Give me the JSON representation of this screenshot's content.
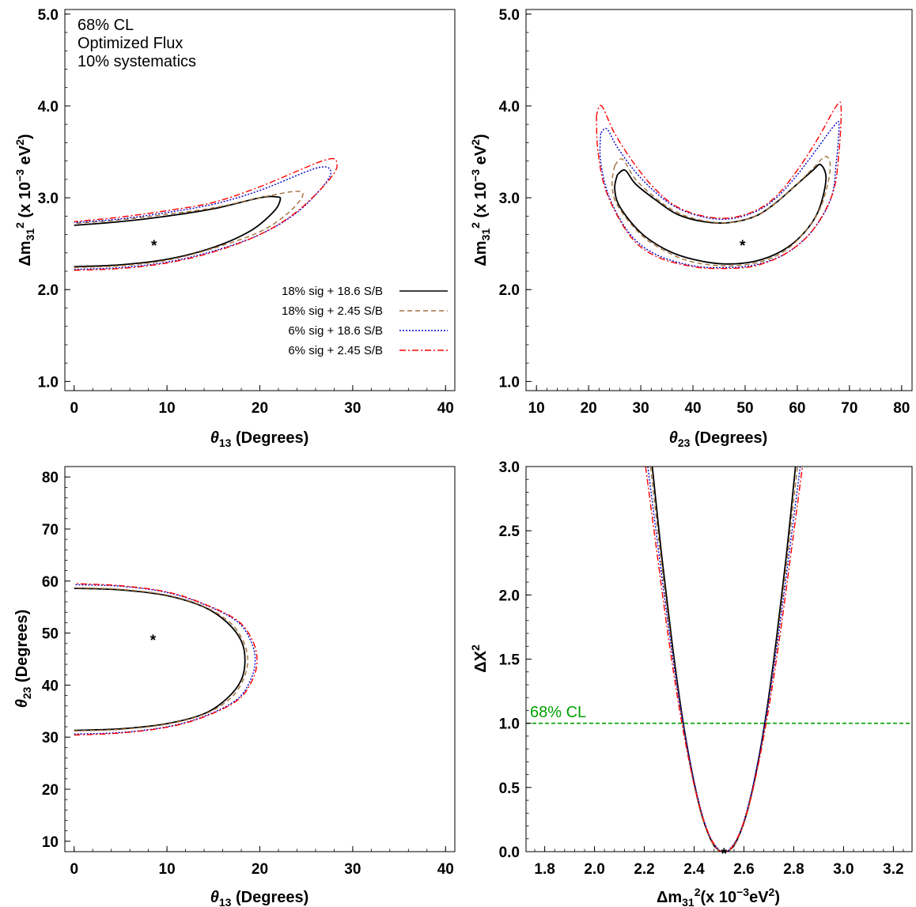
{
  "chart_data": [
    {
      "id": "p1",
      "type": "line",
      "xlim": [
        -1,
        41
      ],
      "ylim": [
        0.9,
        5.05
      ],
      "xticks": [
        0,
        10,
        20,
        30,
        40
      ],
      "xtick_labels": [
        "0",
        "10",
        "20",
        "30",
        "40"
      ],
      "yticks": [
        1.0,
        2.0,
        3.0,
        4.0,
        5.0
      ],
      "ytick_labels": [
        "1.0",
        "2.0",
        "3.0",
        "4.0",
        "5.0"
      ],
      "xlabel": "θ13 (Degrees)",
      "ylabel": "Δm31 2 (x 10−3 eV2)",
      "grid": false,
      "annotations": [
        {
          "text": "68% CL",
          "color": "#ff8c00"
        },
        {
          "text": "Optimized Flux",
          "color": "#a0703c"
        },
        {
          "text": "10% systematics",
          "color": "#8b008b"
        }
      ],
      "best_fit": {
        "x": 8.6,
        "y": 2.5
      },
      "legend": {
        "placement": "bottom-right",
        "entries": [
          {
            "label": "18% sig + 18.6 S/B",
            "color": "#000000",
            "style": "solid"
          },
          {
            "label": "18% sig + 2.45 S/B",
            "color": "#a0703c",
            "style": "dashed"
          },
          {
            "label": "6% sig + 18.6 S/B",
            "color": "#0000cc",
            "style": "dotted"
          },
          {
            "label": "6% sig + 2.45 S/B",
            "color": "#ff0000",
            "style": "dashdot"
          }
        ]
      },
      "series": [
        {
          "name": "18% sig + 18.6 S/B",
          "color": "#000000",
          "style": "solid",
          "x": [
            0,
            5,
            10,
            15,
            19,
            21.5,
            22.2,
            21.8,
            20,
            15,
            10,
            5,
            0
          ],
          "y": [
            2.25,
            2.27,
            2.33,
            2.46,
            2.64,
            2.85,
            2.98,
            3.01,
            3.0,
            2.88,
            2.8,
            2.74,
            2.7
          ]
        },
        {
          "name": "18% sig + 2.45 S/B",
          "color": "#a0703c",
          "style": "dashed",
          "x": [
            0,
            5,
            10,
            15,
            20,
            23,
            24.6,
            23.8,
            20,
            15,
            10,
            5,
            0
          ],
          "y": [
            2.24,
            2.26,
            2.32,
            2.45,
            2.63,
            2.83,
            3.02,
            3.07,
            3.0,
            2.89,
            2.82,
            2.76,
            2.72
          ]
        },
        {
          "name": "6% sig + 18.6 S/B",
          "color": "#0000cc",
          "style": "dotted",
          "x": [
            0,
            5,
            10,
            15,
            20,
            24,
            27,
            27.6,
            26,
            20,
            15,
            10,
            5,
            0
          ],
          "y": [
            2.22,
            2.24,
            2.3,
            2.42,
            2.6,
            2.84,
            3.15,
            3.3,
            3.32,
            3.08,
            2.93,
            2.84,
            2.77,
            2.73
          ]
        },
        {
          "name": "6% sig + 2.45 S/B",
          "color": "#ff0000",
          "style": "dashdot",
          "x": [
            0,
            5,
            10,
            15,
            20,
            24,
            27.5,
            28.3,
            27,
            20,
            15,
            10,
            5,
            0
          ],
          "y": [
            2.21,
            2.23,
            2.29,
            2.41,
            2.6,
            2.85,
            3.2,
            3.37,
            3.41,
            3.12,
            2.95,
            2.86,
            2.79,
            2.74
          ]
        }
      ]
    },
    {
      "id": "p2",
      "type": "line",
      "xlim": [
        8,
        82
      ],
      "ylim": [
        0.9,
        5.05
      ],
      "xticks": [
        10,
        20,
        30,
        40,
        50,
        60,
        70,
        80
      ],
      "xtick_labels": [
        "10",
        "20",
        "30",
        "40",
        "50",
        "60",
        "70",
        "80"
      ],
      "yticks": [
        1.0,
        2.0,
        3.0,
        4.0,
        5.0
      ],
      "ytick_labels": [
        "1.0",
        "2.0",
        "3.0",
        "4.0",
        "5.0"
      ],
      "xlabel": "θ23 (Degrees)",
      "ylabel": "Δm31 2 (x 10−3 eV2)",
      "grid": false,
      "best_fit": {
        "x": 49.5,
        "y": 2.5
      },
      "series": [
        {
          "name": "18% sig + 18.6 S/B",
          "color": "#000000",
          "style": "solid",
          "x": [
            25.5,
            25,
            26,
            30,
            35,
            40,
            46,
            52,
            57,
            61,
            64,
            65.5,
            64.5,
            63,
            60,
            56,
            52,
            47,
            42,
            37,
            33,
            29,
            27,
            25.5
          ],
          "y": [
            3.25,
            3.1,
            2.9,
            2.62,
            2.43,
            2.33,
            2.28,
            2.31,
            2.42,
            2.6,
            2.85,
            3.2,
            3.36,
            3.3,
            3.15,
            2.95,
            2.8,
            2.73,
            2.74,
            2.82,
            2.97,
            3.15,
            3.3,
            3.25
          ]
        },
        {
          "name": "18% sig + 2.45 S/B",
          "color": "#a0703c",
          "style": "dashed",
          "x": [
            25,
            24.5,
            25.5,
            30,
            35,
            40,
            46,
            52,
            57,
            61,
            64.5,
            66.3,
            65.5,
            63,
            60,
            56,
            52,
            47,
            42,
            37,
            33,
            29,
            26.5,
            25
          ],
          "y": [
            3.35,
            3.15,
            2.92,
            2.6,
            2.41,
            2.3,
            2.26,
            2.29,
            2.4,
            2.6,
            2.9,
            3.3,
            3.45,
            3.32,
            3.15,
            2.95,
            2.8,
            2.73,
            2.75,
            2.84,
            2.99,
            3.2,
            3.42,
            3.35
          ]
        },
        {
          "name": "6% sig + 18.6 S/B",
          "color": "#0000cc",
          "style": "dotted",
          "x": [
            22.3,
            22.3,
            24,
            28,
            33,
            40,
            46,
            52,
            58,
            63,
            66.5,
            67.5,
            68,
            67,
            64,
            60,
            56,
            52,
            47,
            42,
            37,
            33,
            29,
            25.5,
            23.5,
            22.3
          ],
          "y": [
            3.7,
            3.4,
            3.0,
            2.6,
            2.38,
            2.26,
            2.24,
            2.27,
            2.4,
            2.65,
            3.0,
            3.4,
            3.8,
            3.78,
            3.55,
            3.25,
            3.0,
            2.85,
            2.77,
            2.79,
            2.89,
            3.05,
            3.28,
            3.55,
            3.75,
            3.7
          ]
        },
        {
          "name": "6% sig + 2.45 S/B",
          "color": "#ff0000",
          "style": "dashdot",
          "x": [
            21.5,
            21.8,
            23.5,
            28,
            33,
            40,
            46,
            52,
            58,
            63,
            66.8,
            68,
            68.4,
            67.5,
            64,
            60,
            56,
            52,
            47,
            42,
            37,
            33,
            29,
            25,
            22.5,
            21.5
          ],
          "y": [
            3.9,
            3.5,
            3.05,
            2.58,
            2.36,
            2.25,
            2.23,
            2.26,
            2.4,
            2.65,
            3.05,
            3.5,
            3.98,
            4.0,
            3.65,
            3.3,
            3.02,
            2.86,
            2.78,
            2.8,
            2.9,
            3.08,
            3.35,
            3.7,
            4.0,
            3.9
          ]
        }
      ]
    },
    {
      "id": "p3",
      "type": "line",
      "xlim": [
        -1,
        41
      ],
      "ylim": [
        8,
        82
      ],
      "xticks": [
        0,
        10,
        20,
        30,
        40
      ],
      "xtick_labels": [
        "0",
        "10",
        "20",
        "30",
        "40"
      ],
      "yticks": [
        10,
        20,
        30,
        40,
        50,
        60,
        70,
        80
      ],
      "ytick_labels": [
        "10",
        "20",
        "30",
        "40",
        "50",
        "60",
        "70",
        "80"
      ],
      "xlabel": "θ13 (Degrees)",
      "ylabel": "θ23 (Degrees)",
      "grid": false,
      "best_fit": {
        "x": 8.5,
        "y": 49
      },
      "series": [
        {
          "name": "18% sig + 18.6 S/B",
          "color": "#000000",
          "style": "solid",
          "x": [
            0,
            5,
            10,
            14,
            16.5,
            18,
            18.4,
            18,
            16.5,
            14,
            10,
            5,
            0
          ],
          "y": [
            31.3,
            31.6,
            32.6,
            34.5,
            37.5,
            41,
            44.8,
            48.5,
            52,
            55,
            57.2,
            58.3,
            58.6
          ]
        },
        {
          "name": "18% sig + 2.45 S/B",
          "color": "#a0703c",
          "style": "dashed",
          "x": [
            0,
            5,
            10,
            14,
            16.8,
            18.2,
            18.7,
            18.2,
            16.8,
            14,
            10,
            5,
            0
          ],
          "y": [
            31.2,
            31.5,
            32.5,
            34.4,
            37.4,
            41,
            44.8,
            48.5,
            52,
            55.1,
            57.3,
            58.4,
            58.7
          ]
        },
        {
          "name": "6% sig + 18.6 S/B",
          "color": "#0000cc",
          "style": "dotted",
          "x": [
            0,
            5,
            10,
            14,
            17.5,
            19,
            19.5,
            19,
            17.5,
            14,
            10,
            5,
            0
          ],
          "y": [
            30.6,
            30.9,
            32,
            34,
            37.2,
            41,
            44.8,
            48.6,
            52.3,
            55.5,
            57.8,
            59,
            59.3
          ]
        },
        {
          "name": "6% sig + 2.45 S/B",
          "color": "#ff0000",
          "style": "dashdot",
          "x": [
            0,
            5,
            10,
            14,
            17.6,
            19.2,
            19.7,
            19.2,
            17.6,
            14,
            10,
            5,
            0
          ],
          "y": [
            30.4,
            30.8,
            31.9,
            33.9,
            37.1,
            41,
            44.8,
            48.6,
            52.4,
            55.6,
            57.9,
            59.1,
            59.5
          ]
        }
      ]
    },
    {
      "id": "p4",
      "type": "line",
      "xlim": [
        1.725,
        3.275
      ],
      "ylim": [
        0.0,
        3.0
      ],
      "xticks": [
        1.8,
        2.0,
        2.2,
        2.4,
        2.6,
        2.8,
        3.0,
        3.2
      ],
      "xtick_labels": [
        "1.8",
        "2.0",
        "2.2",
        "2.4",
        "2.6",
        "2.8",
        "3.0",
        "3.2"
      ],
      "yticks": [
        0.0,
        0.5,
        1.0,
        1.5,
        2.0,
        2.5,
        3.0
      ],
      "ytick_labels": [
        "0.0",
        "0.5",
        "1.0",
        "1.5",
        "2.0",
        "2.5",
        "3.0"
      ],
      "xlabel": "Δm31 2(x 10−3 eV2)",
      "ylabel": "ΔX2",
      "grid": false,
      "best_fit": {
        "x": 2.52,
        "y": 0.0
      },
      "hline": {
        "y": 1.0,
        "label": "68% CL",
        "color": "#00a000"
      },
      "series": [
        {
          "name": "18% sig + 18.6 S/B",
          "color": "#000000",
          "style": "solid",
          "x": [
            2.232,
            2.27,
            2.31,
            2.35,
            2.39,
            2.43,
            2.47,
            2.5,
            2.52,
            2.54,
            2.57,
            2.61,
            2.65,
            2.69,
            2.73,
            2.77,
            2.807
          ],
          "y": [
            3.0,
            2.3,
            1.65,
            1.08,
            0.63,
            0.29,
            0.08,
            0.008,
            0.0,
            0.008,
            0.08,
            0.29,
            0.63,
            1.08,
            1.65,
            2.3,
            3.0
          ]
        },
        {
          "name": "18% sig + 2.45 S/B",
          "color": "#a0703c",
          "style": "dashed",
          "x": [
            2.225,
            2.27,
            2.31,
            2.35,
            2.39,
            2.43,
            2.47,
            2.5,
            2.52,
            2.54,
            2.57,
            2.61,
            2.65,
            2.69,
            2.73,
            2.77,
            2.815
          ],
          "y": [
            3.0,
            2.23,
            1.6,
            1.05,
            0.61,
            0.28,
            0.078,
            0.008,
            0.0,
            0.008,
            0.078,
            0.28,
            0.61,
            1.05,
            1.6,
            2.23,
            3.0
          ]
        },
        {
          "name": "6% sig + 18.6 S/B",
          "color": "#0000cc",
          "style": "dotted",
          "x": [
            2.214,
            2.26,
            2.3,
            2.34,
            2.38,
            2.42,
            2.46,
            2.5,
            2.52,
            2.54,
            2.58,
            2.62,
            2.66,
            2.7,
            2.74,
            2.78,
            2.826
          ],
          "y": [
            3.0,
            2.3,
            1.71,
            1.18,
            0.74,
            0.38,
            0.13,
            0.014,
            0.0,
            0.014,
            0.13,
            0.38,
            0.74,
            1.18,
            1.71,
            2.3,
            3.0
          ]
        },
        {
          "name": "6% sig + 2.45 S/B",
          "color": "#ff0000",
          "style": "dashdot",
          "x": [
            2.205,
            2.25,
            2.29,
            2.33,
            2.37,
            2.41,
            2.45,
            2.49,
            2.52,
            2.55,
            2.59,
            2.63,
            2.67,
            2.71,
            2.75,
            2.79,
            2.835
          ],
          "y": [
            3.0,
            2.34,
            1.76,
            1.24,
            0.8,
            0.44,
            0.18,
            0.03,
            0.0,
            0.03,
            0.18,
            0.44,
            0.8,
            1.24,
            1.76,
            2.34,
            3.0
          ]
        }
      ]
    }
  ]
}
